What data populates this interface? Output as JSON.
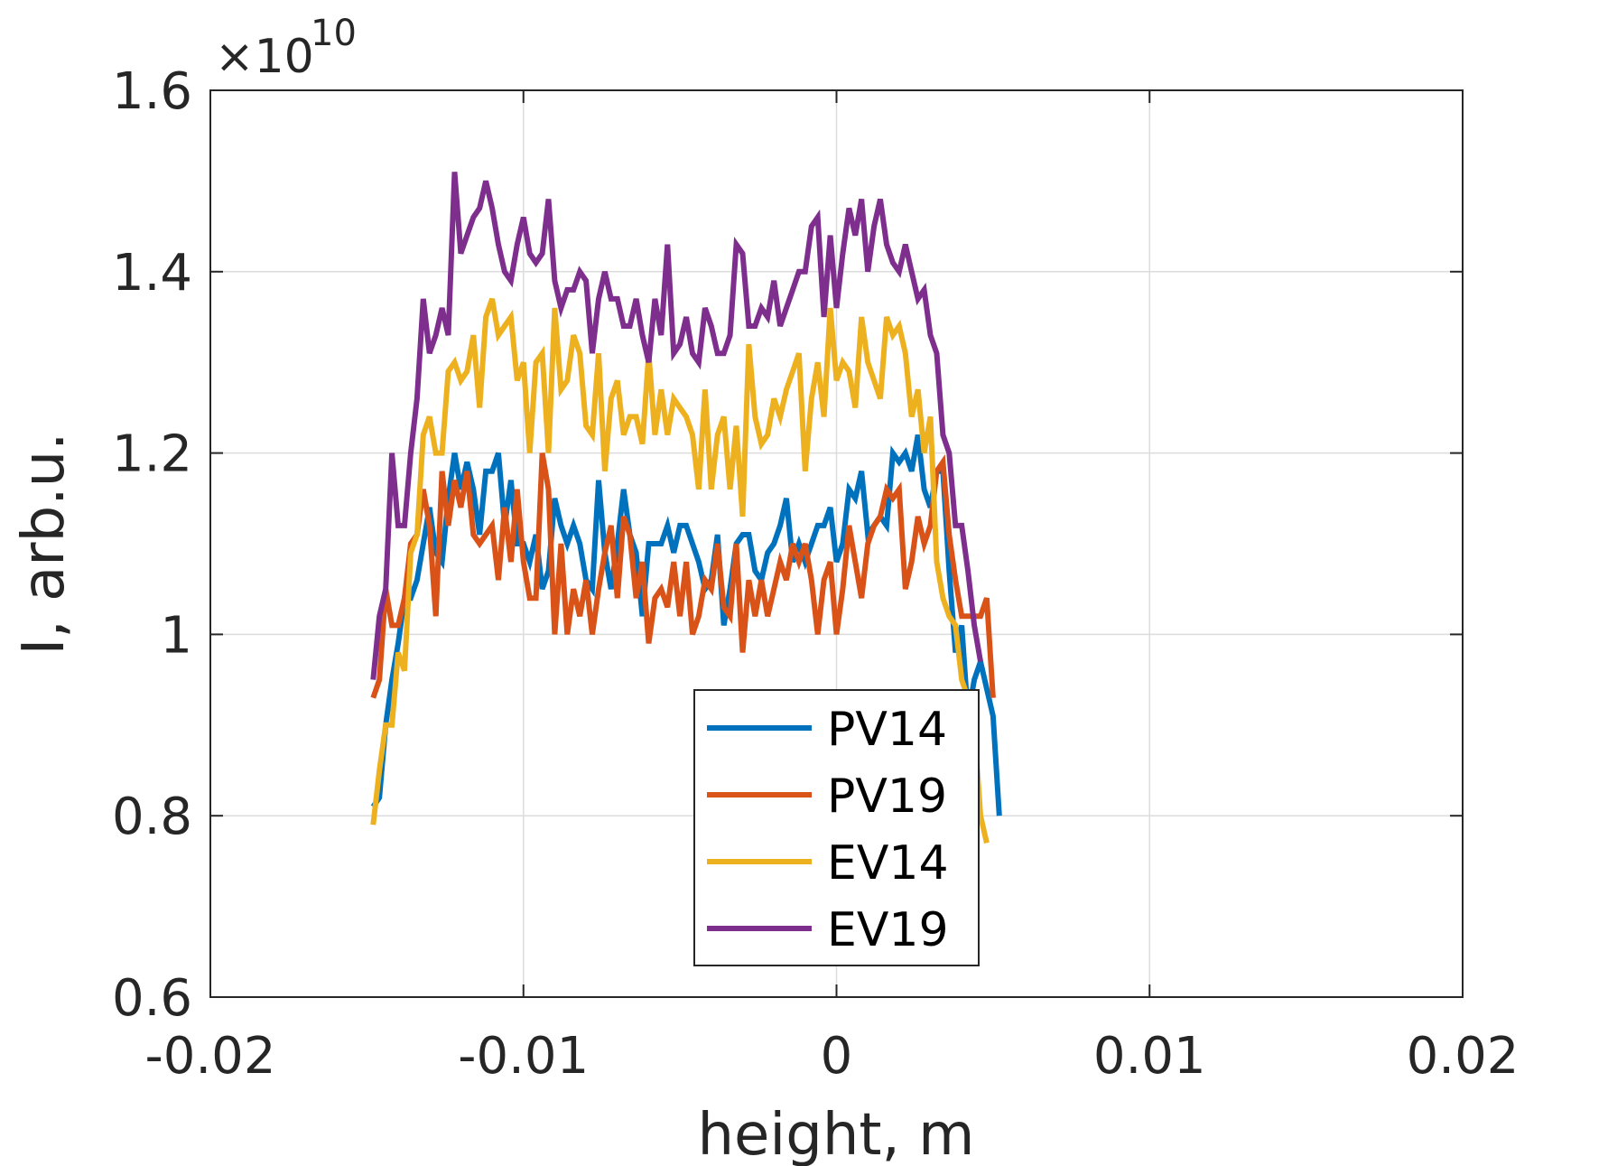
{
  "chart_data": {
    "type": "line",
    "xlabel": "height, m",
    "ylabel": "I, arb.u.",
    "y_exponent_label": "×10",
    "y_exponent_power": "10",
    "xlim": [
      -0.02,
      0.02
    ],
    "ylim": [
      0.6,
      1.6
    ],
    "x_ticks": [
      -0.02,
      -0.01,
      0,
      0.01,
      0.02
    ],
    "x_tick_labels": [
      "-0.02",
      "-0.01",
      "0",
      "0.01",
      "0.02"
    ],
    "y_ticks": [
      0.6,
      0.8,
      1.0,
      1.2,
      1.4,
      1.6
    ],
    "y_tick_labels": [
      "0.6",
      "0.8",
      "1",
      "1.2",
      "1.4",
      "1.6"
    ],
    "grid": true,
    "legend_position": "bottom-center",
    "x_start": -0.0148,
    "x_step": 0.0002,
    "series": [
      {
        "name": "PV14",
        "color": "#0072BD",
        "values": [
          0.81,
          0.82,
          0.9,
          0.95,
          0.99,
          1.04,
          1.04,
          1.06,
          1.1,
          1.14,
          1.09,
          1.08,
          1.15,
          1.2,
          1.16,
          1.19,
          1.16,
          1.11,
          1.18,
          1.18,
          1.2,
          1.12,
          1.17,
          1.1,
          1.1,
          1.08,
          1.11,
          1.05,
          1.07,
          1.15,
          1.12,
          1.1,
          1.12,
          1.1,
          1.06,
          1.05,
          1.17,
          1.09,
          1.05,
          1.1,
          1.16,
          1.11,
          1.09,
          1.02,
          1.1,
          1.1,
          1.1,
          1.12,
          1.09,
          1.12,
          1.12,
          1.1,
          1.08,
          1.05,
          1.06,
          1.11,
          1.01,
          1.05,
          1.1,
          1.11,
          1.11,
          1.07,
          1.06,
          1.09,
          1.1,
          1.12,
          1.15,
          1.08,
          1.1,
          1.08,
          1.1,
          1.12,
          1.12,
          1.14,
          1.08,
          1.1,
          1.16,
          1.15,
          1.18,
          1.11,
          1.12,
          1.13,
          1.12,
          1.2,
          1.19,
          1.2,
          1.18,
          1.22,
          1.16,
          1.14,
          1.18,
          1.18,
          1.07,
          0.98,
          1.01,
          0.91,
          0.95,
          0.97,
          0.94,
          0.91,
          0.8
        ]
      },
      {
        "name": "PV19",
        "color": "#D95319",
        "values": [
          0.93,
          0.95,
          1.05,
          1.01,
          1.01,
          1.04,
          1.1,
          1.11,
          1.16,
          1.12,
          1.02,
          1.18,
          1.12,
          1.17,
          1.14,
          1.18,
          1.11,
          1.1,
          1.11,
          1.12,
          1.06,
          1.14,
          1.08,
          1.16,
          1.08,
          1.04,
          1.04,
          1.2,
          1.16,
          1.0,
          1.1,
          1.0,
          1.05,
          1.02,
          1.06,
          1.0,
          1.05,
          1.09,
          1.12,
          1.04,
          1.13,
          1.11,
          1.04,
          1.08,
          0.99,
          1.04,
          1.05,
          1.03,
          1.08,
          1.02,
          1.08,
          1.0,
          1.02,
          1.06,
          1.05,
          1.1,
          1.03,
          1.02,
          1.1,
          0.98,
          1.06,
          1.02,
          1.06,
          1.02,
          1.05,
          1.08,
          1.06,
          1.1,
          1.08,
          1.1,
          1.06,
          1.0,
          1.06,
          1.08,
          1.0,
          1.05,
          1.12,
          1.08,
          1.04,
          1.1,
          1.12,
          1.13,
          1.16,
          1.15,
          1.16,
          1.05,
          1.08,
          1.13,
          1.1,
          1.12,
          1.18,
          1.19,
          1.11,
          1.06,
          1.02,
          1.02,
          1.02,
          1.02,
          1.04,
          0.93
        ]
      },
      {
        "name": "EV14",
        "color": "#EDB120",
        "values": [
          0.79,
          0.85,
          0.9,
          0.9,
          0.98,
          0.96,
          1.09,
          1.11,
          1.22,
          1.24,
          1.2,
          1.2,
          1.29,
          1.3,
          1.28,
          1.29,
          1.33,
          1.25,
          1.35,
          1.37,
          1.33,
          1.34,
          1.35,
          1.28,
          1.3,
          1.2,
          1.3,
          1.31,
          1.2,
          1.36,
          1.27,
          1.28,
          1.33,
          1.31,
          1.23,
          1.22,
          1.31,
          1.18,
          1.26,
          1.28,
          1.22,
          1.24,
          1.24,
          1.21,
          1.31,
          1.22,
          1.27,
          1.22,
          1.26,
          1.25,
          1.24,
          1.22,
          1.16,
          1.27,
          1.16,
          1.22,
          1.24,
          1.16,
          1.23,
          1.13,
          1.32,
          1.24,
          1.21,
          1.22,
          1.26,
          1.24,
          1.27,
          1.29,
          1.31,
          1.18,
          1.26,
          1.3,
          1.24,
          1.36,
          1.28,
          1.3,
          1.29,
          1.25,
          1.35,
          1.3,
          1.28,
          1.26,
          1.35,
          1.33,
          1.34,
          1.31,
          1.24,
          1.27,
          1.2,
          1.24,
          1.08,
          1.04,
          1.02,
          1.01,
          0.95,
          0.93,
          0.9,
          0.8,
          0.77
        ]
      },
      {
        "name": "EV19",
        "color": "#7E2F8E",
        "values": [
          0.95,
          1.02,
          1.05,
          1.2,
          1.12,
          1.12,
          1.2,
          1.26,
          1.37,
          1.31,
          1.33,
          1.36,
          1.33,
          1.51,
          1.42,
          1.44,
          1.46,
          1.47,
          1.5,
          1.47,
          1.43,
          1.4,
          1.39,
          1.43,
          1.46,
          1.42,
          1.41,
          1.42,
          1.48,
          1.39,
          1.36,
          1.38,
          1.38,
          1.4,
          1.39,
          1.31,
          1.37,
          1.4,
          1.37,
          1.37,
          1.34,
          1.34,
          1.37,
          1.33,
          1.3,
          1.37,
          1.33,
          1.43,
          1.31,
          1.32,
          1.35,
          1.31,
          1.3,
          1.36,
          1.34,
          1.31,
          1.31,
          1.33,
          1.43,
          1.42,
          1.34,
          1.34,
          1.36,
          1.35,
          1.39,
          1.34,
          1.36,
          1.38,
          1.4,
          1.4,
          1.45,
          1.46,
          1.35,
          1.44,
          1.36,
          1.42,
          1.47,
          1.44,
          1.48,
          1.4,
          1.45,
          1.48,
          1.43,
          1.41,
          1.4,
          1.43,
          1.4,
          1.37,
          1.38,
          1.33,
          1.31,
          1.22,
          1.2,
          1.12,
          1.12,
          1.07,
          1.01,
          0.97
        ]
      }
    ]
  }
}
